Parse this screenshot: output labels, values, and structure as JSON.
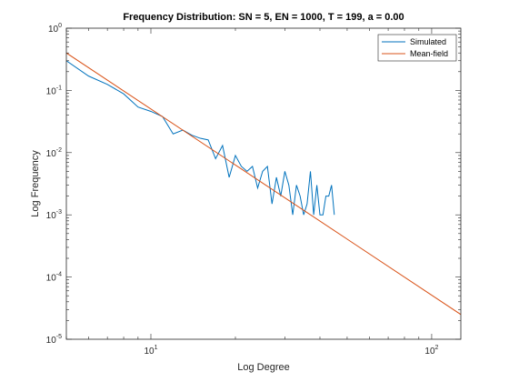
{
  "chart_data": {
    "type": "line",
    "title": "Frequency Distribution: SN = 5, EN = 1000, T = 199, a = 0.00",
    "xlabel": "Log Degree",
    "ylabel": "Log Frequency",
    "xscale": "log",
    "yscale": "log",
    "xlim": [
      5,
      127
    ],
    "ylim": [
      1e-05,
      1
    ],
    "xticks": [
      {
        "value": 10,
        "base": "10",
        "exp": "1"
      },
      {
        "value": 100,
        "base": "10",
        "exp": "2"
      }
    ],
    "yticks": [
      {
        "value": 1e-05,
        "base": "10",
        "exp": "-5"
      },
      {
        "value": 0.0001,
        "base": "10",
        "exp": "-4"
      },
      {
        "value": 0.001,
        "base": "10",
        "exp": "-3"
      },
      {
        "value": 0.01,
        "base": "10",
        "exp": "-2"
      },
      {
        "value": 0.1,
        "base": "10",
        "exp": "-1"
      },
      {
        "value": 1,
        "base": "10",
        "exp": "0"
      }
    ],
    "grid": false,
    "legend_position": "top-right",
    "series": [
      {
        "name": "Simulated",
        "color": "#0072BD",
        "x": [
          5,
          6,
          7,
          8,
          9,
          10,
          11,
          12,
          13,
          14,
          15,
          16,
          17,
          18,
          19,
          20,
          21,
          22,
          23,
          24,
          25,
          26,
          27,
          28,
          29,
          30,
          31,
          32,
          33,
          34,
          35,
          36,
          37,
          38,
          39,
          40,
          41,
          42,
          43,
          44,
          45
        ],
        "y": [
          0.3,
          0.17,
          0.125,
          0.088,
          0.054,
          0.046,
          0.038,
          0.02,
          0.023,
          0.019,
          0.017,
          0.016,
          0.008,
          0.013,
          0.004,
          0.009,
          0.006,
          0.005,
          0.006,
          0.0027,
          0.005,
          0.006,
          0.0015,
          0.004,
          0.002,
          0.005,
          0.003,
          0.001,
          0.003,
          0.002,
          0.001,
          0.0015,
          0.005,
          0.001,
          0.003,
          0.001,
          0.001,
          0.002,
          0.002,
          0.003,
          0.001
        ]
      },
      {
        "name": "Mean-field",
        "color": "#D95319",
        "x": [
          5,
          127
        ],
        "y": [
          0.4,
          2.5e-05
        ]
      }
    ]
  }
}
